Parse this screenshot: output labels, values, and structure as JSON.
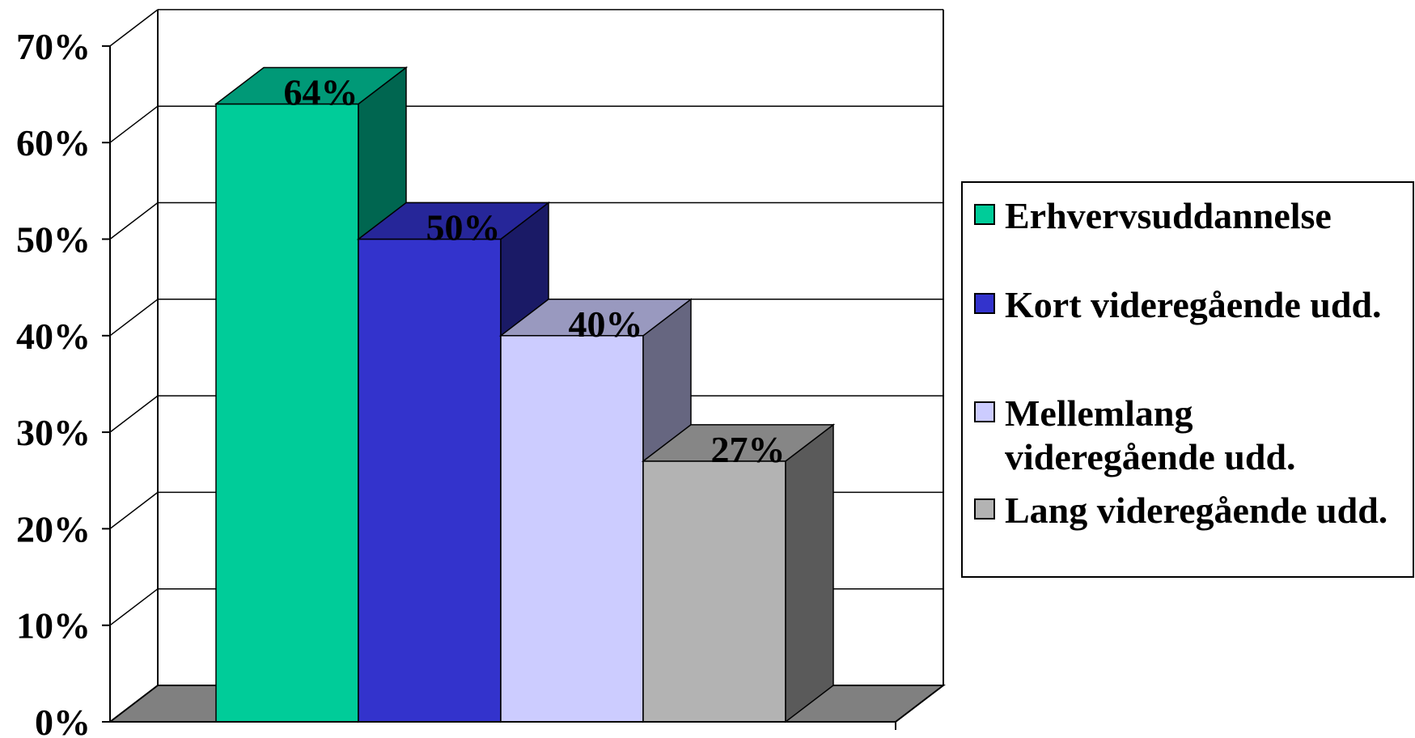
{
  "chart_data": {
    "type": "bar",
    "title": "",
    "xlabel": "",
    "ylabel": "",
    "ylim": [
      0,
      70
    ],
    "yticks": [
      "0%",
      "10%",
      "20%",
      "30%",
      "40%",
      "50%",
      "60%",
      "70%"
    ],
    "grid": true,
    "legend_position": "right",
    "series": [
      {
        "name": "Erhvervsuddannelse",
        "value": 64,
        "label": "64%",
        "color": "#00cc99",
        "top_color": "#009977",
        "side_color": "#006650"
      },
      {
        "name": "Kort videregående udd.",
        "value": 50,
        "label": "50%",
        "color": "#3333cc",
        "top_color": "#262699",
        "side_color": "#1a1a66"
      },
      {
        "name": "Mellemlang videregående udd.",
        "value": 40,
        "label": "40%",
        "color": "#ccccff",
        "top_color": "#9999bf",
        "side_color": "#666680"
      },
      {
        "name": "Lang videregående udd.",
        "value": 27,
        "label": "27%",
        "color": "#b3b3b3",
        "top_color": "#868686",
        "side_color": "#5a5a5a"
      }
    ],
    "floor_color": "#808080"
  }
}
